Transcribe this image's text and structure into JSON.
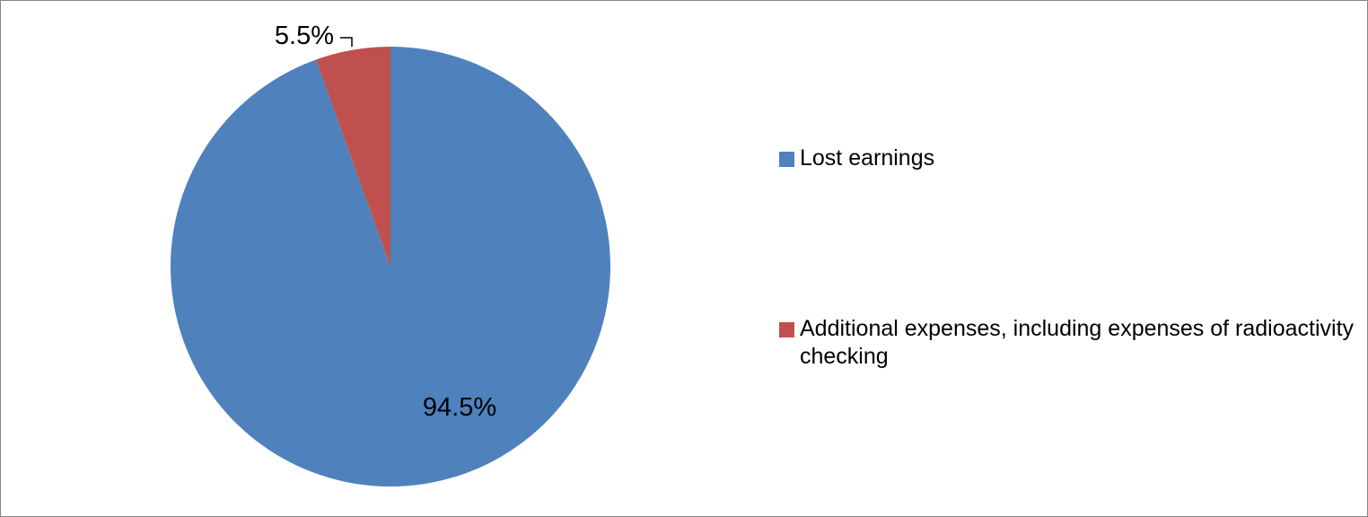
{
  "chart_data": {
    "type": "pie",
    "title": "",
    "slices": [
      {
        "label": "Lost earnings",
        "value": 94.5,
        "display": "94.5%",
        "color": "#4F81BD"
      },
      {
        "label": "Additional expenses, including expenses of radioactivity checking",
        "value": 5.5,
        "display": "5.5%",
        "color": "#C0504D"
      }
    ],
    "start_angle_deg": 0,
    "direction": "clockwise",
    "legend_position": "right"
  }
}
